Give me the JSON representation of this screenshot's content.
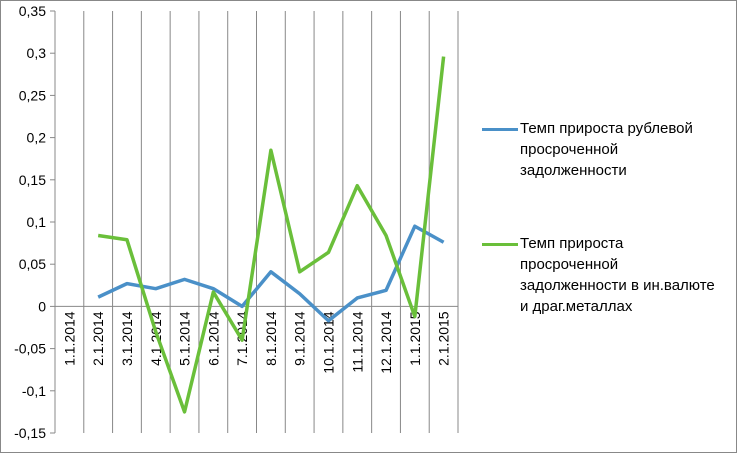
{
  "chart_data": {
    "type": "line",
    "categories": [
      "1.1.2014",
      "2.1.2014",
      "3.1.2014",
      "4.1.2014",
      "5.1.2014",
      "6.1.2014",
      "7.1.2014",
      "8.1.2014",
      "9.1.2014",
      "10.1.2014",
      "11.1.2014",
      "12.1.2014",
      "1.1.2015",
      "2.1.2015"
    ],
    "series": [
      {
        "name": "Темп прироста рублевой просроченной задолженности",
        "color": "#4a90c8",
        "values": [
          null,
          0.011,
          0.027,
          0.021,
          0.032,
          0.021,
          0.0,
          0.041,
          0.015,
          -0.017,
          0.01,
          0.019,
          0.095,
          0.076
        ]
      },
      {
        "name": "Темп прироста просроченной задолженности в ин.валюте и драг.металлах",
        "color": "#6abf3a",
        "values": [
          null,
          0.084,
          0.079,
          -0.03,
          -0.125,
          0.017,
          -0.04,
          0.185,
          0.041,
          0.064,
          0.143,
          0.084,
          -0.012,
          0.296
        ]
      }
    ],
    "ylim": [
      -0.15,
      0.35
    ],
    "yticks": [
      {
        "value": -0.15,
        "label": "-0,15"
      },
      {
        "value": -0.1,
        "label": "-0,1"
      },
      {
        "value": -0.05,
        "label": "-0,05"
      },
      0,
      {
        "value": 0.05,
        "label": "0,05"
      },
      {
        "value": 0.1,
        "label": "0,1"
      },
      {
        "value": 0.15,
        "label": "0,15"
      },
      {
        "value": 0.2,
        "label": "0,2"
      },
      {
        "value": 0.25,
        "label": "0,25"
      },
      {
        "value": 0.3,
        "label": "0,3"
      },
      {
        "value": 0.35,
        "label": "0,35"
      }
    ],
    "grid": "x",
    "legend": "right"
  }
}
